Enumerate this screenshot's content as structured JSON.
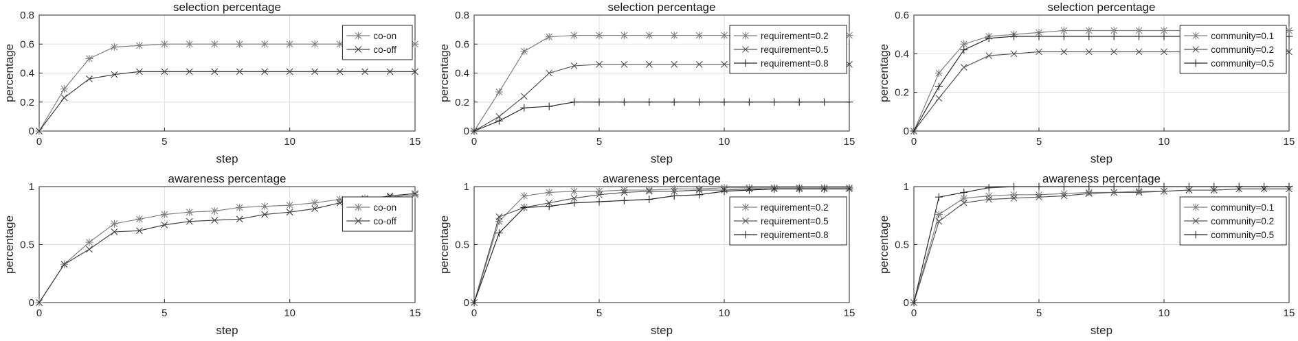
{
  "chart_data": [
    {
      "type": "line",
      "title": "selection percentage",
      "xlabel": "step",
      "ylabel": "percentage",
      "xlim": [
        0,
        15
      ],
      "ylim": [
        0,
        0.8
      ],
      "xticks": [
        "0",
        "5",
        "10",
        "15"
      ],
      "yticks": [
        "0",
        "0.2",
        "0.4",
        "0.6",
        "0.8"
      ],
      "grid": true,
      "legend": "top-right",
      "x": [
        0,
        1,
        2,
        3,
        4,
        5,
        6,
        7,
        8,
        9,
        10,
        11,
        12,
        13,
        14,
        15
      ],
      "series": [
        {
          "name": "co-on",
          "marker": "star",
          "color": "#7f7f7f",
          "values": [
            0,
            0.29,
            0.5,
            0.58,
            0.59,
            0.6,
            0.6,
            0.6,
            0.6,
            0.6,
            0.6,
            0.6,
            0.6,
            0.6,
            0.6,
            0.6
          ]
        },
        {
          "name": "co-off",
          "marker": "x",
          "color": "#404040",
          "values": [
            0,
            0.23,
            0.36,
            0.39,
            0.41,
            0.41,
            0.41,
            0.41,
            0.41,
            0.41,
            0.41,
            0.41,
            0.41,
            0.41,
            0.41,
            0.41
          ]
        }
      ]
    },
    {
      "type": "line",
      "title": "selection percentage",
      "xlabel": "step",
      "ylabel": "percentage",
      "xlim": [
        0,
        15
      ],
      "ylim": [
        0,
        0.8
      ],
      "xticks": [
        "0",
        "5",
        "10",
        "15"
      ],
      "yticks": [
        "0",
        "0.2",
        "0.4",
        "0.6",
        "0.8"
      ],
      "grid": true,
      "legend": "top-right",
      "x": [
        0,
        1,
        2,
        3,
        4,
        5,
        6,
        7,
        8,
        9,
        10,
        11,
        12,
        13,
        14,
        15
      ],
      "series": [
        {
          "name": "requirement=0.2",
          "marker": "star",
          "color": "#7f7f7f",
          "values": [
            0,
            0.27,
            0.55,
            0.65,
            0.66,
            0.66,
            0.66,
            0.66,
            0.66,
            0.66,
            0.66,
            0.66,
            0.66,
            0.66,
            0.66,
            0.66
          ]
        },
        {
          "name": "requirement=0.5",
          "marker": "x",
          "color": "#555555",
          "values": [
            0,
            0.1,
            0.24,
            0.4,
            0.45,
            0.46,
            0.46,
            0.46,
            0.46,
            0.46,
            0.46,
            0.46,
            0.46,
            0.46,
            0.46,
            0.46
          ]
        },
        {
          "name": "requirement=0.8",
          "marker": "plus",
          "color": "#262626",
          "values": [
            0,
            0.07,
            0.16,
            0.17,
            0.2,
            0.2,
            0.2,
            0.2,
            0.2,
            0.2,
            0.2,
            0.2,
            0.2,
            0.2,
            0.2,
            0.2
          ]
        }
      ]
    },
    {
      "type": "line",
      "title": "selection percentage",
      "xlabel": "step",
      "ylabel": "percentage",
      "xlim": [
        0,
        15
      ],
      "ylim": [
        0,
        0.6
      ],
      "xticks": [
        "0",
        "5",
        "10",
        "15"
      ],
      "yticks": [
        "0",
        "0.2",
        "0.4",
        "0.6"
      ],
      "grid": true,
      "legend": "top-right",
      "x": [
        0,
        1,
        2,
        3,
        4,
        5,
        6,
        7,
        8,
        9,
        10,
        11,
        12,
        13,
        14,
        15
      ],
      "series": [
        {
          "name": "community=0.1",
          "marker": "star",
          "color": "#7f7f7f",
          "values": [
            0,
            0.3,
            0.45,
            0.49,
            0.5,
            0.51,
            0.52,
            0.52,
            0.52,
            0.52,
            0.52,
            0.52,
            0.52,
            0.52,
            0.52,
            0.52
          ]
        },
        {
          "name": "community=0.2",
          "marker": "x",
          "color": "#555555",
          "values": [
            0,
            0.17,
            0.33,
            0.39,
            0.4,
            0.41,
            0.41,
            0.41,
            0.41,
            0.41,
            0.41,
            0.41,
            0.41,
            0.41,
            0.41,
            0.41
          ]
        },
        {
          "name": "community=0.5",
          "marker": "plus",
          "color": "#262626",
          "values": [
            0,
            0.23,
            0.42,
            0.48,
            0.49,
            0.49,
            0.49,
            0.49,
            0.49,
            0.49,
            0.49,
            0.49,
            0.49,
            0.49,
            0.49,
            0.49
          ]
        }
      ]
    },
    {
      "type": "line",
      "title": "awareness percentage",
      "xlabel": "step",
      "ylabel": "percentage",
      "xlim": [
        0,
        15
      ],
      "ylim": [
        0,
        1
      ],
      "xticks": [
        "0",
        "5",
        "10",
        "15"
      ],
      "yticks": [
        "0",
        "0.5",
        "1"
      ],
      "grid": true,
      "legend": "top-right",
      "x": [
        0,
        1,
        2,
        3,
        4,
        5,
        6,
        7,
        8,
        9,
        10,
        11,
        12,
        13,
        14,
        15
      ],
      "series": [
        {
          "name": "co-on",
          "marker": "star",
          "color": "#7f7f7f",
          "values": [
            0,
            0.33,
            0.52,
            0.68,
            0.72,
            0.76,
            0.78,
            0.79,
            0.82,
            0.83,
            0.84,
            0.86,
            0.89,
            0.9,
            0.91,
            0.93
          ]
        },
        {
          "name": "co-off",
          "marker": "x",
          "color": "#404040",
          "values": [
            0,
            0.33,
            0.46,
            0.61,
            0.62,
            0.67,
            0.7,
            0.71,
            0.72,
            0.76,
            0.78,
            0.81,
            0.86,
            0.89,
            0.92,
            0.94
          ]
        }
      ]
    },
    {
      "type": "line",
      "title": "awareness percentage",
      "xlabel": "step",
      "ylabel": "percentage",
      "xlim": [
        0,
        15
      ],
      "ylim": [
        0,
        1
      ],
      "xticks": [
        "0",
        "5",
        "10",
        "15"
      ],
      "yticks": [
        "0",
        "0.5",
        "1"
      ],
      "grid": true,
      "legend": "top-right",
      "x": [
        0,
        1,
        2,
        3,
        4,
        5,
        6,
        7,
        8,
        9,
        10,
        11,
        12,
        13,
        14,
        15
      ],
      "series": [
        {
          "name": "requirement=0.2",
          "marker": "star",
          "color": "#7f7f7f",
          "values": [
            0,
            0.7,
            0.92,
            0.95,
            0.96,
            0.96,
            0.97,
            0.97,
            0.98,
            0.98,
            0.99,
            0.99,
            0.99,
            0.99,
            0.99,
            0.99
          ]
        },
        {
          "name": "requirement=0.5",
          "marker": "x",
          "color": "#555555",
          "values": [
            0,
            0.74,
            0.82,
            0.86,
            0.9,
            0.93,
            0.95,
            0.96,
            0.96,
            0.97,
            0.97,
            0.98,
            0.98,
            0.98,
            0.98,
            0.98
          ]
        },
        {
          "name": "requirement=0.8",
          "marker": "plus",
          "color": "#262626",
          "values": [
            0,
            0.6,
            0.82,
            0.83,
            0.86,
            0.87,
            0.88,
            0.89,
            0.92,
            0.93,
            0.96,
            0.97,
            0.98,
            0.98,
            0.98,
            0.98
          ]
        }
      ]
    },
    {
      "type": "line",
      "title": "awareness percentage",
      "xlabel": "step",
      "ylabel": "percentage",
      "xlim": [
        0,
        15
      ],
      "ylim": [
        0,
        1
      ],
      "xticks": [
        "0",
        "5",
        "10",
        "15"
      ],
      "yticks": [
        "0",
        "0.5",
        "1"
      ],
      "grid": true,
      "legend": "top-right",
      "x": [
        0,
        1,
        2,
        3,
        4,
        5,
        6,
        7,
        8,
        9,
        10,
        11,
        12,
        13,
        14,
        15
      ],
      "series": [
        {
          "name": "community=0.1",
          "marker": "star",
          "color": "#7f7f7f",
          "values": [
            0,
            0.76,
            0.9,
            0.92,
            0.93,
            0.93,
            0.94,
            0.95,
            0.95,
            0.96,
            0.96,
            0.97,
            0.97,
            0.98,
            0.98,
            0.98
          ]
        },
        {
          "name": "community=0.2",
          "marker": "x",
          "color": "#555555",
          "values": [
            0,
            0.7,
            0.86,
            0.89,
            0.9,
            0.91,
            0.92,
            0.94,
            0.95,
            0.95,
            0.96,
            0.97,
            0.97,
            0.98,
            0.98,
            0.98
          ]
        },
        {
          "name": "community=0.5",
          "marker": "plus",
          "color": "#262626",
          "values": [
            0,
            0.91,
            0.95,
            0.99,
            1.0,
            1.0,
            1.0,
            1.0,
            1.0,
            1.0,
            1.0,
            1.0,
            1.0,
            1.0,
            1.0,
            1.0
          ]
        }
      ]
    }
  ]
}
